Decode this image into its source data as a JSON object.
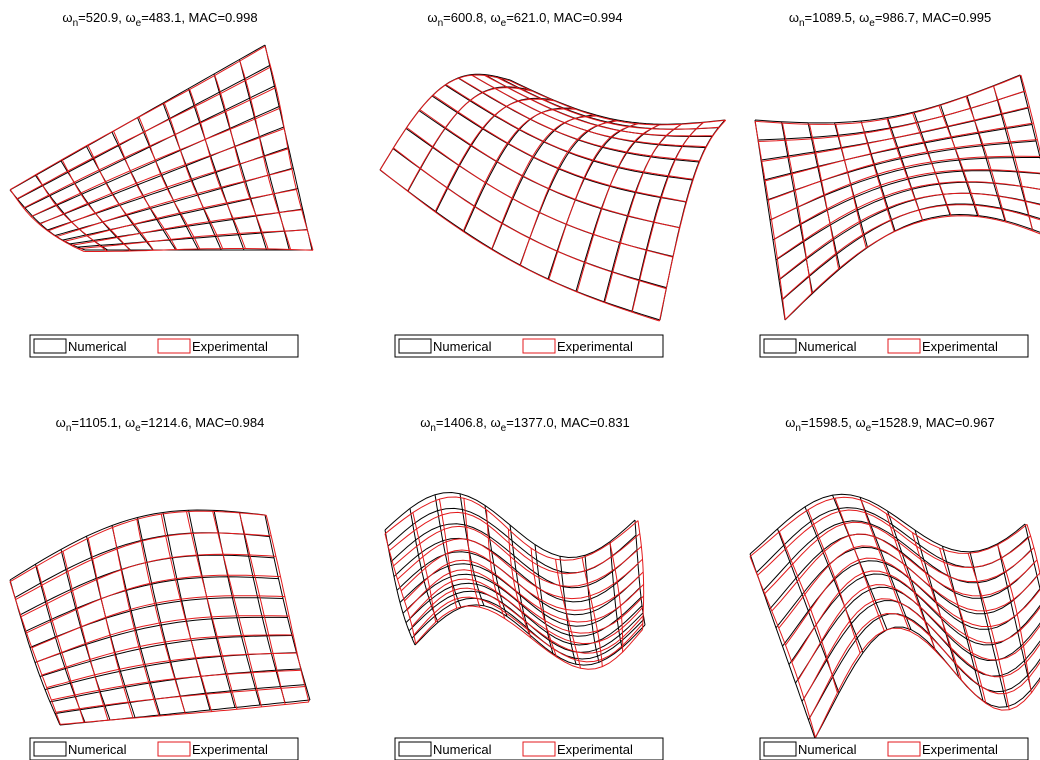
{
  "panels": [
    {
      "title": [
        "ω",
        "n",
        "=520.9, ω",
        "e",
        "=483.1, MAC=0.998"
      ]
    },
    {
      "title": [
        "ω",
        "n",
        "=600.8, ω",
        "e",
        "=621.0, MAC=0.994"
      ]
    },
    {
      "title": [
        "ω",
        "n",
        "=1089.5, ω",
        "e",
        "=986.7, MAC=0.995"
      ]
    },
    {
      "title": [
        "ω",
        "n",
        "=1105.1, ω",
        "e",
        "=1214.6, MAC=0.984"
      ]
    },
    {
      "title": [
        "ω",
        "n",
        "=1406.8, ω",
        "e",
        "=1377.0, MAC=0.831"
      ]
    },
    {
      "title": [
        "ω",
        "n",
        "=1598.5, ω",
        "e",
        "=1528.9, MAC=0.967"
      ]
    }
  ],
  "legend": [
    "Numerical",
    "Experimental"
  ]
}
